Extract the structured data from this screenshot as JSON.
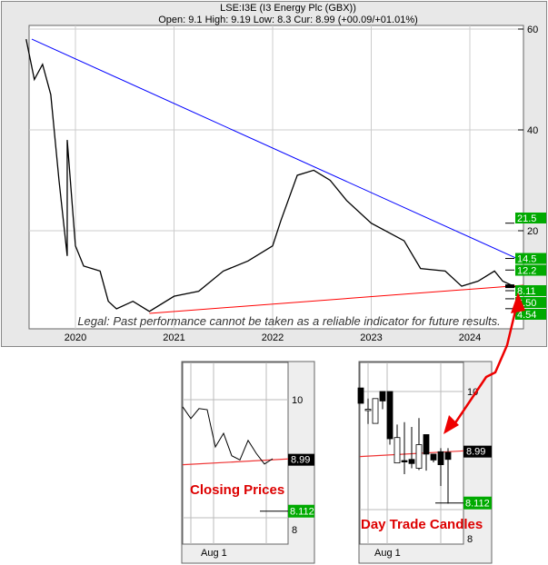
{
  "header": {
    "title": "LSE:I3E (I3 Energy Plc (GBX))",
    "quote": "Open: 9.1 High: 9.19 Low: 8.3 Cur: 8.99 (+00.09/+01.01%)"
  },
  "legal": "Legal: Past performance cannot be taken as a reliable indicator for future results.",
  "colors": {
    "price": "#000000",
    "resistance": "#0000ff",
    "support": "#ff0000",
    "level_label_bg": "#00aa00",
    "current_label_bg": "#000000",
    "annotation": "#dd0000"
  },
  "chart_data": [
    {
      "type": "line",
      "name": "main",
      "x_ticks": [
        "2020",
        "2021",
        "2022",
        "2023",
        "2024"
      ],
      "y_ticks": [
        20,
        40,
        60
      ],
      "ylim": [
        0,
        60
      ],
      "grid": true,
      "price": [
        [
          "2019-07",
          58
        ],
        [
          "2019-08",
          50
        ],
        [
          "2019-09",
          53
        ],
        [
          "2019-10",
          47
        ],
        [
          "2019-11",
          30
        ],
        [
          "2019-12",
          15
        ],
        [
          "2019-12",
          38
        ],
        [
          "2020-01",
          17
        ],
        [
          "2020-02",
          13
        ],
        [
          "2020-04",
          12
        ],
        [
          "2020-05",
          6
        ],
        [
          "2020-06",
          4.5
        ],
        [
          "2020-08",
          6
        ],
        [
          "2020-10",
          4
        ],
        [
          "2021-01",
          7
        ],
        [
          "2021-04",
          8
        ],
        [
          "2021-07",
          12
        ],
        [
          "2021-10",
          14
        ],
        [
          "2022-01",
          17
        ],
        [
          "2022-02",
          22
        ],
        [
          "2022-04",
          31
        ],
        [
          "2022-06",
          32
        ],
        [
          "2022-08",
          30
        ],
        [
          "2022-10",
          26
        ],
        [
          "2023-01",
          21.5
        ],
        [
          "2023-05",
          18
        ],
        [
          "2023-07",
          12.5
        ],
        [
          "2023-10",
          12
        ],
        [
          "2023-12",
          9
        ],
        [
          "2024-02",
          10
        ],
        [
          "2024-04",
          12
        ],
        [
          "2024-05",
          10
        ],
        [
          "2024-07",
          8.5
        ]
      ],
      "resistance": [
        [
          "2019-07",
          58
        ],
        [
          "2024-07",
          13.9
        ]
      ],
      "support": [
        [
          "2020-10",
          3.6
        ],
        [
          "2024-07",
          9.2
        ]
      ],
      "levels": [
        {
          "v": 21.5,
          "t": "21.5"
        },
        {
          "v": 14.5,
          "t": "14.5"
        },
        {
          "v": 12.2,
          "t": "12.2"
        },
        {
          "v": 8.11,
          "t": "8.11"
        },
        {
          "v": 6.5,
          "t": "6.50"
        },
        {
          "v": 4.54,
          "t": "4.54"
        }
      ],
      "current": {
        "v": 8.99,
        "t": "8.99"
      }
    },
    {
      "type": "line",
      "name": "Closing Prices",
      "label": "Closing Prices",
      "x_ticks": [
        "Aug 1"
      ],
      "y_ticks": [
        {
          "v": 10,
          "t": "10"
        },
        {
          "v": 8,
          "t": "8"
        }
      ],
      "values": [
        9.88,
        9.68,
        9.85,
        9.83,
        9.2,
        9.43,
        9.05,
        8.98,
        9.31,
        9.09,
        8.91,
        9.0
      ],
      "current": {
        "v": 8.99,
        "t": "8.99"
      },
      "target": {
        "v": 8.112,
        "t": "8.112"
      }
    },
    {
      "type": "candlestick",
      "name": "Day Trade Candles",
      "label": "Day Trade Candles",
      "x_ticks": [
        "Aug 1"
      ],
      "y_ticks": [
        {
          "v": 10,
          "t": "10"
        },
        {
          "v": 8,
          "t": "8"
        }
      ],
      "candles": [
        [
          10.06,
          10.06,
          9.8,
          9.8
        ],
        [
          9.68,
          9.88,
          9.45,
          9.7
        ],
        [
          9.46,
          9.88,
          9.46,
          9.88
        ],
        [
          10,
          10,
          9.7,
          9.84
        ],
        [
          10,
          10,
          9.1,
          9.2
        ],
        [
          8.79,
          9.44,
          8.79,
          9.22
        ],
        [
          8.83,
          9.48,
          8.6,
          8.82
        ],
        [
          8.85,
          9.4,
          8.7,
          8.78
        ],
        [
          8.7,
          9.55,
          8.67,
          9.1
        ],
        [
          9.27,
          9.27,
          8.66,
          8.94
        ],
        [
          8.94,
          8.94,
          8.8,
          8.84
        ],
        [
          8.98,
          9.04,
          8.4,
          8.76
        ],
        [
          8.97,
          9.04,
          8.1,
          8.85
        ]
      ],
      "current": {
        "v": 8.99,
        "t": "8.99"
      },
      "target": {
        "v": 8.112,
        "t": "8.112"
      }
    }
  ]
}
